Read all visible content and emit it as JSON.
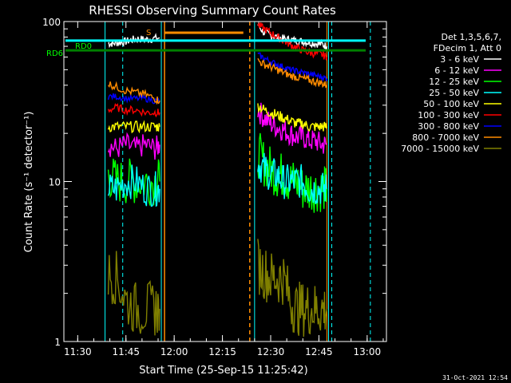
{
  "chart_data": {
    "type": "line",
    "title": "RHESSI Observing Summary Count Rates",
    "xlabel": "Start Time (25-Sep-15 11:25:42)",
    "ylabel": "Count Rate (s⁻¹ detector⁻¹)",
    "y_scale": "log",
    "xlim": [
      "11:25:42",
      "13:06:00"
    ],
    "ylim": [
      1,
      100
    ],
    "x_ticks": [
      "11:30",
      "11:45",
      "12:00",
      "12:15",
      "12:30",
      "12:45",
      "13:00"
    ],
    "y_ticks": [
      "1",
      "10",
      "100"
    ],
    "legend_title_lines": [
      "Det 1,3,5,6,7,",
      "FDecim 1, Att 0"
    ],
    "legend_position": "right",
    "series": [
      {
        "name": "3 - 6 keV",
        "color": "#ffffff",
        "x": [
          "11:39:30",
          "11:41",
          "11:43",
          "11:45",
          "11:47",
          "11:49",
          "11:51",
          "11:53",
          "11:55:30",
          "12:26",
          "12:28",
          "12:30",
          "12:32",
          "12:34",
          "12:36",
          "12:38",
          "12:40",
          "12:42",
          "12:44",
          "12:46",
          "12:47:30"
        ],
        "y": [
          73,
          73,
          74,
          75,
          77,
          78,
          77,
          78,
          79,
          95,
          85,
          82,
          80,
          78,
          77,
          76,
          75,
          74,
          73,
          72,
          70
        ]
      },
      {
        "name": "6 - 12 keV",
        "color": "#ff00ff",
        "x": [
          "11:39:30",
          "11:42",
          "11:45",
          "11:48",
          "11:51",
          "11:54",
          "11:55:30",
          "12:26",
          "12:28",
          "12:30",
          "12:32",
          "12:34",
          "12:36",
          "12:38",
          "12:40",
          "12:42",
          "12:44",
          "12:46",
          "12:47:30"
        ],
        "y": [
          17,
          16,
          17,
          16,
          17,
          16,
          17,
          28,
          25,
          23,
          22,
          21,
          20,
          19,
          19,
          18,
          18,
          17,
          17
        ]
      },
      {
        "name": "12 - 25 keV",
        "color": "#00ff00",
        "x": [
          "11:39:30",
          "11:42",
          "11:45",
          "11:48",
          "11:51",
          "11:54",
          "11:55:30",
          "12:26",
          "12:28",
          "12:30",
          "12:32",
          "12:34",
          "12:36",
          "12:38",
          "12:40",
          "12:42",
          "12:44",
          "12:46",
          "12:47:30"
        ],
        "y": [
          11,
          10,
          10,
          10,
          10,
          10,
          10,
          15,
          13,
          12,
          11,
          11,
          10,
          10,
          9,
          9,
          9,
          9,
          9
        ]
      },
      {
        "name": "25 - 50 keV",
        "color": "#00ffff",
        "x": [
          "11:39:30",
          "11:42",
          "11:45",
          "11:48",
          "11:51",
          "11:54",
          "11:55:30",
          "12:26",
          "12:28",
          "12:30",
          "12:32",
          "12:34",
          "12:36",
          "12:38",
          "12:40",
          "12:42",
          "12:44",
          "12:46",
          "12:47:30"
        ],
        "y": [
          9,
          9,
          10,
          10,
          9,
          9,
          9,
          13,
          12,
          11,
          11,
          10,
          10,
          10,
          10,
          9,
          9,
          9,
          9
        ]
      },
      {
        "name": "50 - 100 keV",
        "color": "#ffff00",
        "x": [
          "11:39:30",
          "11:42",
          "11:45",
          "11:48",
          "11:51",
          "11:54",
          "11:55:30",
          "12:26",
          "12:28",
          "12:30",
          "12:32",
          "12:34",
          "12:36",
          "12:38",
          "12:40",
          "12:42",
          "12:44",
          "12:46",
          "12:47:30"
        ],
        "y": [
          22,
          22,
          22,
          22,
          22,
          22,
          22,
          30,
          28,
          27,
          26,
          25,
          24,
          23,
          23,
          22,
          22,
          22,
          22
        ]
      },
      {
        "name": "100 - 300 keV",
        "color": "#ff0000",
        "x": [
          "11:39:30",
          "11:42",
          "11:45",
          "11:48",
          "11:51",
          "11:54",
          "11:55:30",
          "12:26",
          "12:28",
          "12:30",
          "12:32",
          "12:34",
          "12:36",
          "12:38",
          "12:40",
          "12:42",
          "12:44",
          "12:46",
          "12:47:30"
        ],
        "y": [
          28,
          29,
          28,
          28,
          27,
          27,
          27,
          95,
          90,
          85,
          80,
          76,
          72,
          69,
          66,
          64,
          63,
          62,
          60
        ]
      },
      {
        "name": "300 - 800 keV",
        "color": "#0000ff",
        "x": [
          "11:39:30",
          "11:42",
          "11:45",
          "11:48",
          "11:51",
          "11:54",
          "11:55:30",
          "12:26",
          "12:28",
          "12:30",
          "12:32",
          "12:34",
          "12:36",
          "12:38",
          "12:40",
          "12:42",
          "12:44",
          "12:46",
          "12:47:30"
        ],
        "y": [
          34,
          34,
          33,
          33,
          33,
          32,
          32,
          62,
          59,
          56,
          54,
          52,
          50,
          49,
          48,
          47,
          46,
          45,
          44
        ]
      },
      {
        "name": "800 - 7000 keV",
        "color": "#ff8c00",
        "x": [
          "11:39:30",
          "11:42",
          "11:45",
          "11:48",
          "11:51",
          "11:54",
          "11:55:30",
          "12:26",
          "12:28",
          "12:30",
          "12:32",
          "12:34",
          "12:36",
          "12:38",
          "12:40",
          "12:42",
          "12:44",
          "12:46",
          "12:47:30"
        ],
        "y": [
          41,
          39,
          37,
          36,
          35,
          33,
          32,
          57,
          54,
          52,
          50,
          48,
          46,
          45,
          44,
          43,
          42,
          41,
          40
        ]
      },
      {
        "name": "7000 - 15000 keV",
        "color": "#808000",
        "x": [
          "11:39:30",
          "11:42",
          "11:45",
          "11:48",
          "11:51",
          "11:54",
          "11:55:30",
          "12:26",
          "12:28",
          "12:30",
          "12:32",
          "12:34",
          "12:36",
          "12:38",
          "12:40",
          "12:42",
          "12:44",
          "12:46",
          "12:47:30"
        ],
        "y": [
          2.6,
          2.5,
          1.8,
          1.6,
          1.6,
          1.6,
          1.6,
          3.0,
          2.7,
          2.5,
          2.5,
          2.5,
          1.8,
          1.6,
          1.6,
          1.6,
          1.6,
          1.6,
          1.6
        ]
      }
    ],
    "annotations": {
      "rd0_label": "RD0",
      "rd6_label": "RD6",
      "rd0_level": 76,
      "rd6_level": 66,
      "s_marker": "S",
      "footer_date": "31-Oct-2021 12:54",
      "night_intervals": [
        [
          "11:25:42",
          "11:25:42"
        ],
        [
          "11:56:30",
          "12:23:00"
        ]
      ],
      "saa_interval": [
        "11:57:00",
        "12:21:30"
      ],
      "cyan_dashed_lines": [
        "11:44:00",
        "12:49:00",
        "13:01:00"
      ],
      "cyan_solid_lines": [
        "11:25:42",
        "11:38:30",
        "11:56:00",
        "12:25:00",
        "12:48:00"
      ],
      "orange_lines": [
        "11:57:00",
        "12:23:30"
      ]
    }
  }
}
